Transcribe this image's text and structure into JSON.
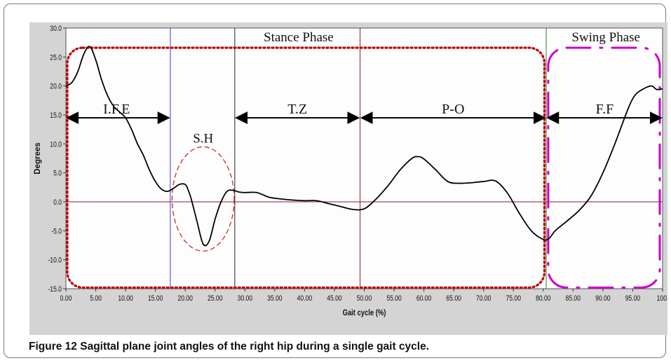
{
  "caption": {
    "label": "Figure 12",
    "text": "Sagittal plane joint angles of the right hip during a single gait cycle."
  },
  "chart_data": {
    "type": "line",
    "xlabel": "Gait cycle (%)",
    "ylabel": "Degrees",
    "xlim": [
      0,
      100
    ],
    "ylim": [
      -15,
      30
    ],
    "x_ticks": [
      "0.00",
      "5.00",
      "10.00",
      "15.00",
      "20.00",
      "25.00",
      "30.00",
      "35.00",
      "40.00",
      "45.00",
      "50.00",
      "55.00",
      "60.00",
      "65.00",
      "70.00",
      "75.00",
      "80.00",
      "85.00",
      "90.00",
      "95.00",
      "100."
    ],
    "y_ticks": [
      "30.0",
      "25.0",
      "20.0",
      "15.0",
      "10.0",
      "5.0",
      "0.0",
      "-5.0",
      "-10.0",
      "-15.0"
    ],
    "series": [
      {
        "color": "#000000",
        "x": [
          0,
          1,
          2,
          3,
          4,
          5,
          6,
          7,
          8,
          9,
          10,
          11,
          12,
          13,
          14,
          15,
          16,
          17,
          18,
          19,
          20,
          20.5,
          21,
          22,
          23,
          24,
          25,
          26,
          27,
          28,
          29,
          30,
          32,
          34,
          36,
          38,
          40,
          42,
          44,
          46,
          48,
          50,
          52,
          54,
          56,
          58,
          59,
          60,
          62,
          64,
          66,
          68,
          70,
          72,
          74,
          76,
          78,
          80,
          81,
          82,
          84,
          86,
          88,
          90,
          92,
          94,
          95,
          96,
          98,
          99,
          100
        ],
        "y": [
          20.0,
          20.6,
          22.5,
          25.5,
          26.8,
          24.5,
          21.0,
          18.3,
          16.5,
          15.5,
          14.5,
          12.5,
          10.0,
          8.0,
          5.5,
          3.5,
          2.2,
          1.8,
          2.3,
          3.0,
          3.0,
          2.0,
          0.5,
          -3.5,
          -7.3,
          -6.8,
          -3.0,
          0.0,
          1.8,
          2.0,
          1.7,
          1.6,
          1.6,
          0.8,
          0.5,
          0.3,
          0.2,
          0.2,
          -0.3,
          -0.8,
          -1.3,
          -1.2,
          0.5,
          2.8,
          5.5,
          7.5,
          7.8,
          7.4,
          5.5,
          3.5,
          3.2,
          3.3,
          3.5,
          3.6,
          1.5,
          -2.0,
          -5.0,
          -6.5,
          -6.3,
          -5.0,
          -3.3,
          -1.5,
          1.0,
          5.0,
          10.0,
          15.5,
          17.8,
          19.0,
          20.0,
          19.4,
          19.5
        ]
      }
    ],
    "phase_lines": [
      {
        "x": 17.5,
        "color": "#3a3ad0"
      },
      {
        "x": 28.3,
        "color": "#222222"
      },
      {
        "x": 49.3,
        "color": "#8a1c1c"
      },
      {
        "x": 80.5,
        "color": "#2f7a2f"
      }
    ],
    "zero_line_color": "#8a1c1c",
    "phase_titles": [
      {
        "label": "Stance Phase",
        "x": 39
      },
      {
        "label": "Swing Phase",
        "x": 90.5
      }
    ],
    "segments": [
      {
        "label": "I.F.E",
        "x_start": 0,
        "x_end": 17.5,
        "y": 14.5,
        "label_x": 8.5
      },
      {
        "label": "T.Z",
        "x_start": 28.3,
        "x_end": 49.3,
        "y": 14.5,
        "label_x": 38.8
      },
      {
        "label": "P-O",
        "x_start": 49.3,
        "x_end": 80.5,
        "y": 14.5,
        "label_x": 64.9
      },
      {
        "label": "F.F",
        "x_start": 80.5,
        "x_end": 100,
        "y": 14.5,
        "label_x": 90.3
      }
    ],
    "annotations": [
      {
        "label": "S.H",
        "shape": "ellipse",
        "cx": 23,
        "cy": 0.5,
        "rx_units": 5.2,
        "ry_units": 9,
        "color": "#c62828"
      }
    ],
    "regions": [
      {
        "name": "stance",
        "x": [
          0,
          80.2
        ],
        "y": [
          -14.8,
          26.6
        ],
        "color": "#c00000",
        "style": "dotted"
      },
      {
        "name": "swing",
        "x": [
          80.6,
          100
        ],
        "y": [
          -14.8,
          26.6
        ],
        "color": "#cc00cc",
        "style": "dashdot"
      }
    ],
    "grid": false
  }
}
